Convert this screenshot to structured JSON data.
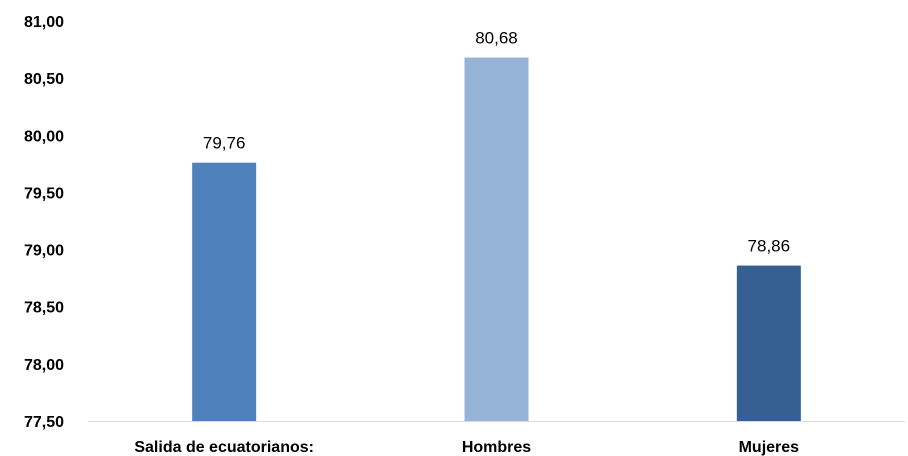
{
  "chart_data": {
    "type": "bar",
    "categories": [
      "Salida de ecuatorianos:",
      "Hombres",
      "Mujeres"
    ],
    "values": [
      79.76,
      80.68,
      78.86
    ],
    "value_labels": [
      "79,76",
      "80,68",
      "78,86"
    ],
    "colors": [
      "#4f81bd",
      "#95b3d7",
      "#366092"
    ],
    "ylim": [
      77.5,
      81.0
    ],
    "yticks": [
      77.5,
      78.0,
      78.5,
      79.0,
      79.5,
      80.0,
      80.5,
      81.0
    ],
    "ytick_labels": [
      "77,50",
      "78,00",
      "78,50",
      "79,00",
      "79,50",
      "80,00",
      "80,50",
      "81,00"
    ],
    "grid": false,
    "legend": "none",
    "axis_color": "#d9d9d9"
  }
}
